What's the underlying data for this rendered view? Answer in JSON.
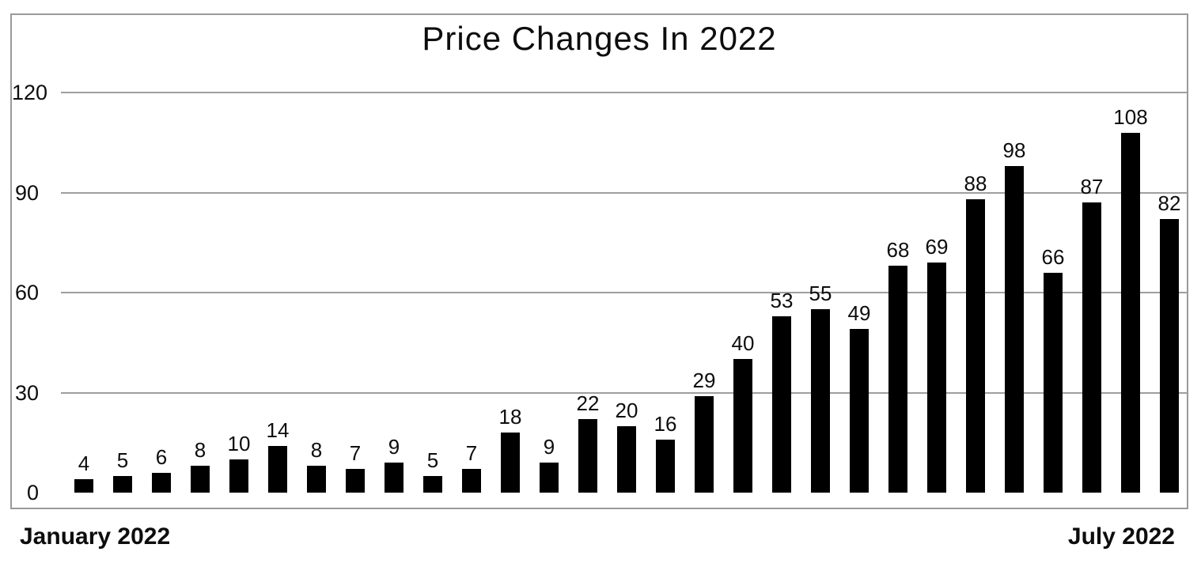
{
  "chart_data": {
    "type": "bar",
    "title": "Price Changes In 2022",
    "x_start_label": "January 2022",
    "x_end_label": "July 2022",
    "values": [
      4,
      5,
      6,
      8,
      10,
      14,
      8,
      7,
      9,
      5,
      7,
      18,
      9,
      22,
      20,
      16,
      29,
      40,
      53,
      55,
      49,
      68,
      69,
      88,
      98,
      66,
      87,
      108,
      82
    ],
    "y_ticks": [
      0,
      30,
      60,
      90,
      120
    ],
    "ylim": [
      0,
      120
    ],
    "grid": "horizontal",
    "legend": "none",
    "data_labels": true,
    "bar_color": "#000000",
    "gridline_color": "#9e9e9e",
    "border_color": "#9a9a9a",
    "text_color": "#0d0d0d"
  }
}
